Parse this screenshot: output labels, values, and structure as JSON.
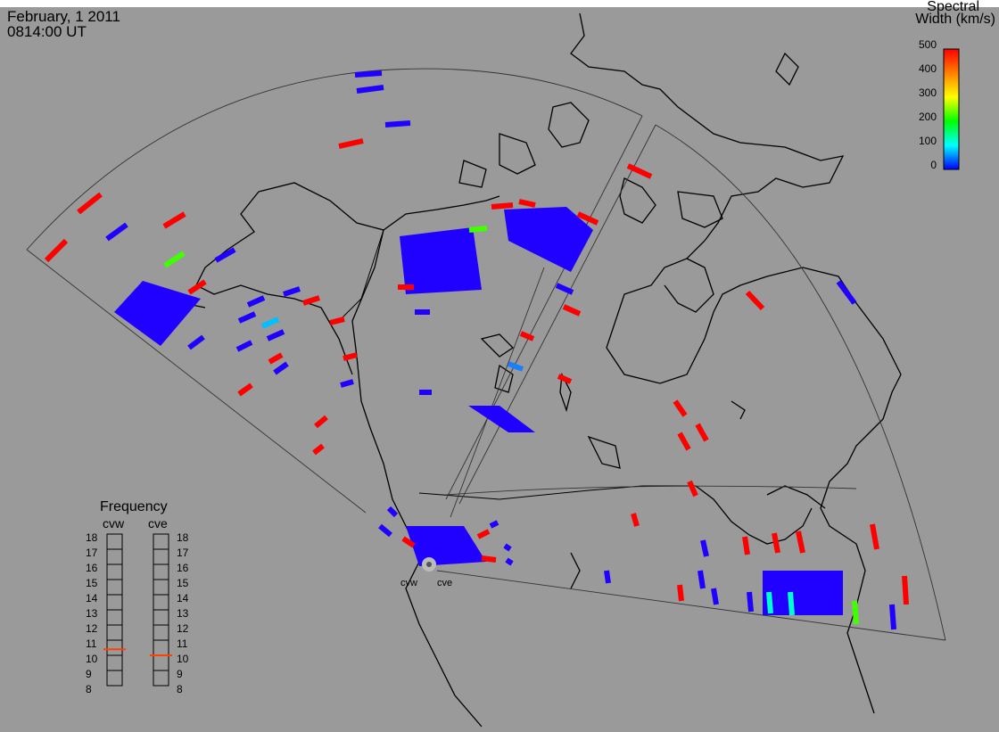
{
  "header": {
    "date": "February, 1 2011",
    "time": "0814:00 UT"
  },
  "colorbar": {
    "title_line1": "Spectral",
    "title_line2": "Width (km/s)",
    "ticks": [
      "500",
      "400",
      "300",
      "200",
      "100",
      "0"
    ],
    "colors": [
      "#ff0000",
      "#ff8000",
      "#ffff00",
      "#00ff00",
      "#00ffff",
      "#0000ff"
    ]
  },
  "frequency_panel": {
    "title": "Frequency",
    "radars": [
      "cvw",
      "cve"
    ],
    "scale": [
      "18",
      "17",
      "16",
      "15",
      "14",
      "13",
      "12",
      "11",
      "10",
      "9",
      "8"
    ],
    "cvw_mhz": 10.9,
    "cve_mhz": 10.5,
    "marker_color": "#ff4000"
  },
  "radar_sites": {
    "west": "cvw",
    "east": "cve"
  },
  "colors": {
    "background": "#9a9a9a",
    "low_width": "#2000ff",
    "high_width": "#ff0000"
  }
}
